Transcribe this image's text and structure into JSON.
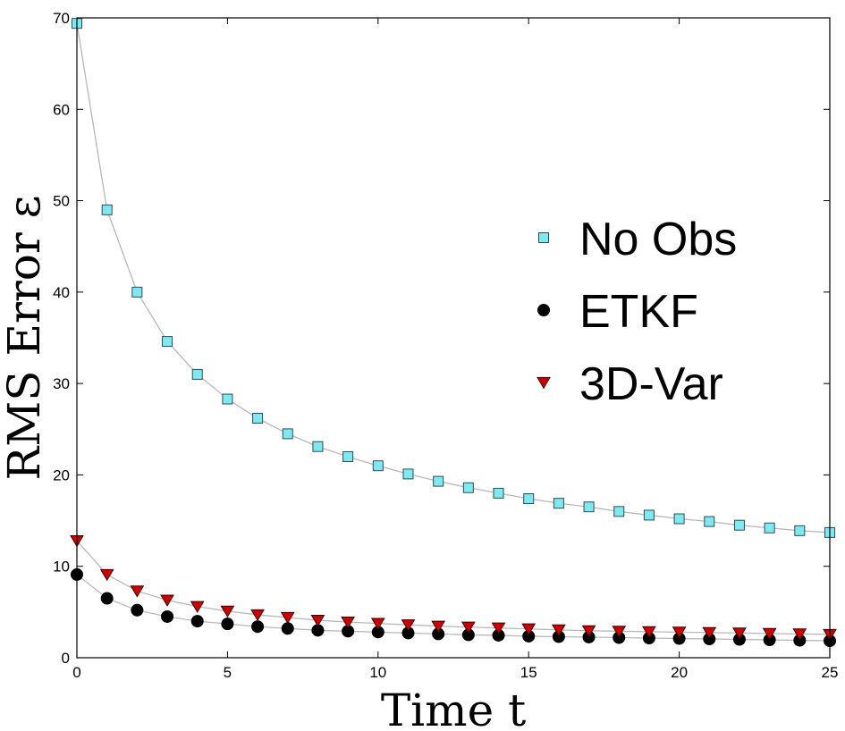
{
  "chart_data": {
    "type": "line",
    "xlabel": "Time t",
    "ylabel": "RMS Error ε",
    "xlim": [
      0,
      25
    ],
    "ylim": [
      0,
      70
    ],
    "xticks": [
      "0",
      "5",
      "10",
      "15",
      "20",
      "25"
    ],
    "yticks": [
      "0",
      "10",
      "20",
      "30",
      "40",
      "50",
      "60",
      "70"
    ],
    "grid": false,
    "legend_position": "right",
    "x": [
      0,
      1,
      2,
      3,
      4,
      5,
      6,
      7,
      8,
      9,
      10,
      11,
      12,
      13,
      14,
      15,
      16,
      17,
      18,
      19,
      20,
      21,
      22,
      23,
      24,
      25
    ],
    "series": [
      {
        "name": "No Obs",
        "marker": "square",
        "color": "#7fe8f0",
        "values": [
          69.4,
          49.0,
          40.0,
          34.6,
          31.0,
          28.3,
          26.2,
          24.5,
          23.1,
          22.0,
          21.0,
          20.1,
          19.3,
          18.6,
          18.0,
          17.4,
          16.9,
          16.5,
          16.0,
          15.6,
          15.2,
          14.9,
          14.5,
          14.2,
          13.9,
          13.7
        ]
      },
      {
        "name": "ETKF",
        "marker": "circle",
        "color": "#000000",
        "values": [
          9.1,
          6.5,
          5.2,
          4.5,
          4.0,
          3.7,
          3.4,
          3.2,
          3.0,
          2.9,
          2.8,
          2.7,
          2.6,
          2.5,
          2.45,
          2.35,
          2.3,
          2.25,
          2.2,
          2.15,
          2.1,
          2.05,
          2.0,
          1.95,
          1.9,
          1.85
        ]
      },
      {
        "name": "3D-Var",
        "marker": "triangle-down",
        "color": "#cc0000",
        "values": [
          12.8,
          9.1,
          7.3,
          6.3,
          5.6,
          5.1,
          4.7,
          4.4,
          4.1,
          3.9,
          3.75,
          3.6,
          3.45,
          3.35,
          3.25,
          3.15,
          3.05,
          2.95,
          2.9,
          2.85,
          2.8,
          2.75,
          2.7,
          2.65,
          2.6,
          2.55
        ]
      }
    ]
  }
}
